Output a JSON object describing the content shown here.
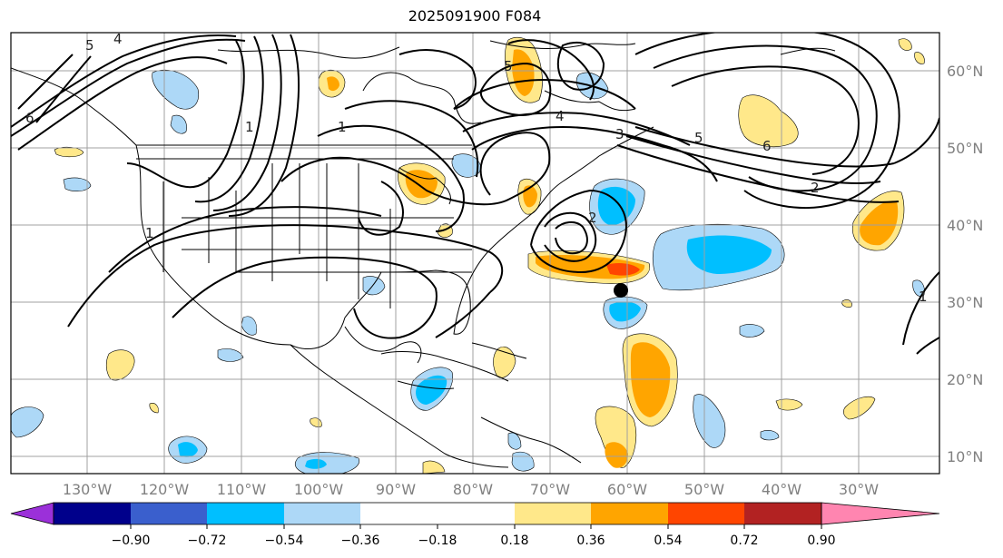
{
  "map": {
    "title": "2025091900 F084",
    "lon_labels": [
      "130°W",
      "120°W",
      "110°W",
      "100°W",
      "90°W",
      "80°W",
      "70°W",
      "60°W",
      "50°W",
      "40°W",
      "30°W"
    ],
    "lat_labels": [
      "60°N",
      "50°N",
      "40°N",
      "30°N",
      "20°N",
      "10°N"
    ],
    "contour_labels": [
      "4",
      "5",
      "6",
      "1",
      "1",
      "4",
      "3",
      "5",
      "6",
      "2",
      "1",
      "2",
      "5",
      "1"
    ]
  },
  "colorbar": {
    "ticks": [
      "−0.90",
      "−0.72",
      "−0.54",
      "−0.36",
      "−0.18",
      "0.18",
      "0.36",
      "0.54",
      "0.72",
      "0.90"
    ],
    "colors": [
      "#9b30d9",
      "#00008b",
      "#3a5fcd",
      "#00bfff",
      "#add8f7",
      "#ffffff",
      "#ffe88a",
      "#ffa500",
      "#ff4500",
      "#b22222",
      "#ff85b0"
    ]
  }
}
